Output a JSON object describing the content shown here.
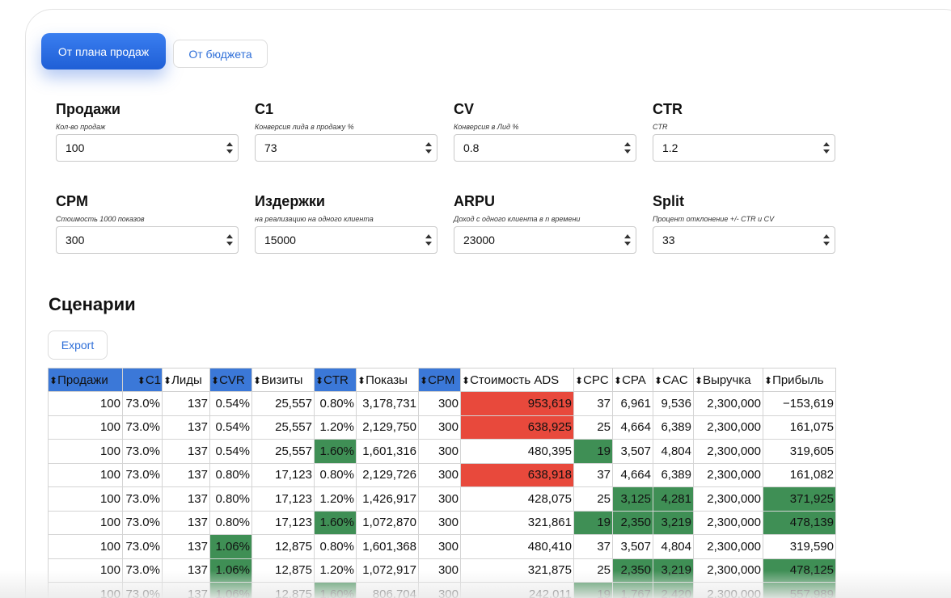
{
  "mode_tabs": {
    "primary": "От плана продаж",
    "secondary": "От бюджета"
  },
  "fields": [
    {
      "title": "Продажи",
      "hint": "Кол-во продаж",
      "value": "100"
    },
    {
      "title": "C1",
      "hint": "Конверсия лида в продажу %",
      "value": "73"
    },
    {
      "title": "CV",
      "hint": "Конверсия в Лид %",
      "value": "0.8"
    },
    {
      "title": "CTR",
      "hint": "CTR",
      "value": "1.2"
    },
    {
      "title": "CPM",
      "hint": "Стоимость 1000 показов",
      "value": "300"
    },
    {
      "title": "Издержки",
      "hint": "на реализацию на одного клиента",
      "value": "15000"
    },
    {
      "title": "ARPU",
      "hint": "Доход с одного клиента в n времени",
      "value": "23000"
    },
    {
      "title": "Split",
      "hint": "Процент отклонение +/- CTR и CV",
      "value": "33"
    }
  ],
  "scenarios": {
    "title": "Сценарии",
    "export_label": "Export",
    "sort_glyph": "⬍",
    "columns": [
      "Продажи",
      "C1",
      "Лиды",
      "CVR",
      "Визиты",
      "CTR",
      "Показы",
      "CPM",
      "Стоимость ADS",
      "CPC",
      "CPA",
      "CAC",
      "Выручка",
      "Прибыль"
    ],
    "highlighted_columns": [
      "Продажи",
      "C1",
      "CVR",
      "CTR",
      "CPM"
    ],
    "colors": {
      "header_highlight": "#3b78d8",
      "bad": "#e8493c",
      "good": "#3f8f55"
    },
    "rows": [
      {
        "cells": [
          "100",
          "73.0%",
          "137",
          "0.54%",
          "25,557",
          "0.80%",
          "3,178,731",
          "300",
          "953,619",
          "37",
          "6,961",
          "9,536",
          "2,300,000",
          "−153,619"
        ],
        "red": [
          8
        ],
        "green": []
      },
      {
        "cells": [
          "100",
          "73.0%",
          "137",
          "0.54%",
          "25,557",
          "1.20%",
          "2,129,750",
          "300",
          "638,925",
          "25",
          "4,664",
          "6,389",
          "2,300,000",
          "161,075"
        ],
        "red": [
          8
        ],
        "green": []
      },
      {
        "cells": [
          "100",
          "73.0%",
          "137",
          "0.54%",
          "25,557",
          "1.60%",
          "1,601,316",
          "300",
          "480,395",
          "19",
          "3,507",
          "4,804",
          "2,300,000",
          "319,605"
        ],
        "red": [],
        "green": [
          5,
          9
        ]
      },
      {
        "cells": [
          "100",
          "73.0%",
          "137",
          "0.80%",
          "17,123",
          "0.80%",
          "2,129,726",
          "300",
          "638,918",
          "37",
          "4,664",
          "6,389",
          "2,300,000",
          "161,082"
        ],
        "red": [
          8
        ],
        "green": []
      },
      {
        "cells": [
          "100",
          "73.0%",
          "137",
          "0.80%",
          "17,123",
          "1.20%",
          "1,426,917",
          "300",
          "428,075",
          "25",
          "3,125",
          "4,281",
          "2,300,000",
          "371,925"
        ],
        "red": [],
        "green": [
          10,
          11,
          13
        ]
      },
      {
        "cells": [
          "100",
          "73.0%",
          "137",
          "0.80%",
          "17,123",
          "1.60%",
          "1,072,870",
          "300",
          "321,861",
          "19",
          "2,350",
          "3,219",
          "2,300,000",
          "478,139"
        ],
        "red": [],
        "green": [
          5,
          9,
          10,
          11,
          13
        ]
      },
      {
        "cells": [
          "100",
          "73.0%",
          "137",
          "1.06%",
          "12,875",
          "0.80%",
          "1,601,368",
          "300",
          "480,410",
          "37",
          "3,507",
          "4,804",
          "2,300,000",
          "319,590"
        ],
        "red": [],
        "green": [
          3
        ]
      },
      {
        "cells": [
          "100",
          "73.0%",
          "137",
          "1.06%",
          "12,875",
          "1.20%",
          "1,072,917",
          "300",
          "321,875",
          "25",
          "2,350",
          "3,219",
          "2,300,000",
          "478,125"
        ],
        "red": [],
        "green": [
          3,
          10,
          11,
          13
        ]
      },
      {
        "cells": [
          "100",
          "73.0%",
          "137",
          "1.06%",
          "12,875",
          "1.60%",
          "806,704",
          "300",
          "242,011",
          "19",
          "1,767",
          "2,420",
          "2,300,000",
          "557,989"
        ],
        "red": [],
        "green": [
          3,
          5,
          9,
          10,
          11,
          13
        ]
      }
    ]
  }
}
